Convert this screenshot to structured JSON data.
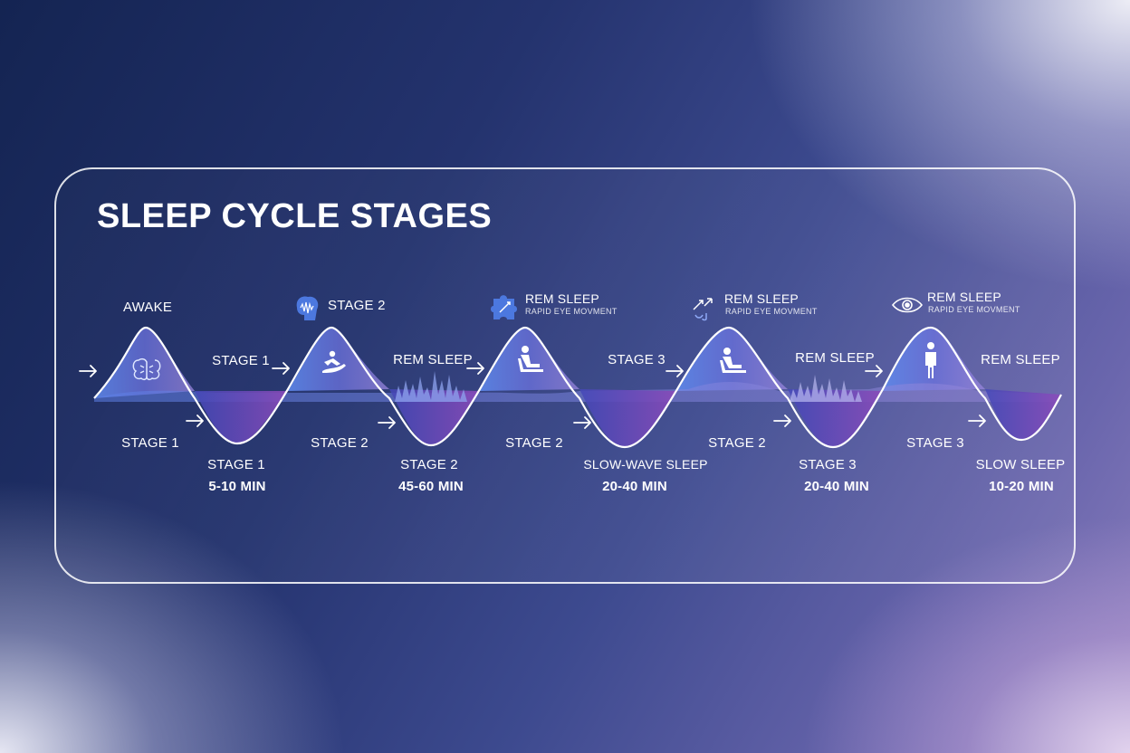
{
  "title": "SLEEP CYCLE STAGES",
  "colors": {
    "wave_light": "#6f86e8",
    "wave_mid": "#5b5fd0",
    "trough": "#6b3fb3",
    "outline": "#ffffff",
    "icon_badge": "#4a72e0"
  },
  "peaks": [
    {
      "label": "AWAKE",
      "sub": "",
      "icon": "brain-icon"
    },
    {
      "label": "STAGE 2",
      "sub": "",
      "icon": "reclining-person-icon"
    },
    {
      "label": "REM SLEEP",
      "sub": "RAPID EYE MOVMENT",
      "icon": "person-seated-icon"
    },
    {
      "label": "REM SLEEP",
      "sub": "RAPID EYE MOVMENT",
      "icon": "person-seated-icon"
    },
    {
      "label": "REM SLEEP",
      "sub": "RAPID EYE MOVMENT",
      "icon": "standing-person-icon"
    }
  ],
  "top_icons": [
    "brain-waves-icon",
    "puzzle-icon",
    "arrows-icon",
    "eye-icon"
  ],
  "mid_labels": [
    "STAGE 1",
    "REM SLEEP",
    "STAGE 3",
    "REM SLEEP",
    "REM SLEEP"
  ],
  "lower_labels": [
    "STAGE 1",
    "STAGE 2",
    "STAGE 2",
    "STAGE 2",
    "STAGE 3"
  ],
  "troughs": [
    {
      "name": "STAGE 1",
      "duration": "5-10 MIN"
    },
    {
      "name": "STAGE 2",
      "duration": "45-60 MIN"
    },
    {
      "name": "SLOW-WAVE SLEEP",
      "duration": "20-40 MIN"
    },
    {
      "name": "STAGE 3",
      "duration": "20-40 MIN"
    },
    {
      "name": "SLOW SLEEP",
      "duration": "10-20 MIN"
    }
  ]
}
